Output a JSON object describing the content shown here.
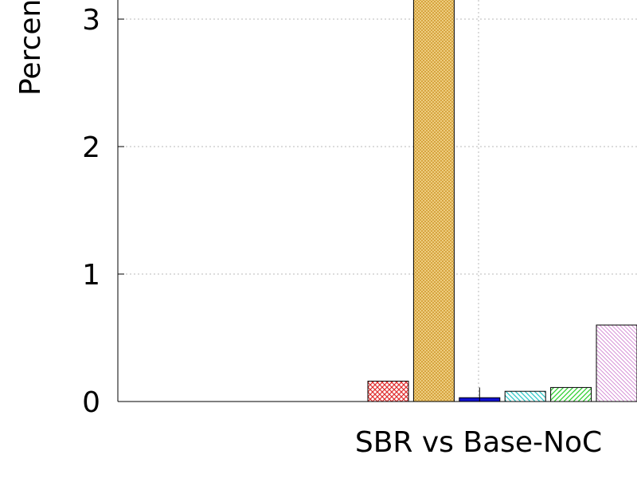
{
  "chart_data": {
    "type": "bar",
    "title": "",
    "xlabel": "",
    "ylabel": "Percent",
    "categories": [
      "SBR vs Base-NoC"
    ],
    "ylim": [
      0,
      3.3
    ],
    "yticks": [
      "0",
      "1",
      "2",
      "3"
    ],
    "grid": true,
    "series": [
      {
        "values": [
          0.16
        ],
        "color": "#e03030",
        "pattern": "crosshatch",
        "error": null
      },
      {
        "values": [
          3.3
        ],
        "color": "#e8b040",
        "pattern": "dense-dots",
        "error": null
      },
      {
        "values": [
          0.03
        ],
        "color": "#1010d0",
        "pattern": "solid",
        "error": 0.08
      },
      {
        "values": [
          0.08
        ],
        "color": "#30c8c8",
        "pattern": "diagonal-back",
        "error": null
      },
      {
        "values": [
          0.11
        ],
        "color": "#30d030",
        "pattern": "diagonal",
        "error": null
      },
      {
        "values": [
          0.6
        ],
        "color": "#d080d0",
        "pattern": "diagonal-fine",
        "error": null
      }
    ]
  }
}
